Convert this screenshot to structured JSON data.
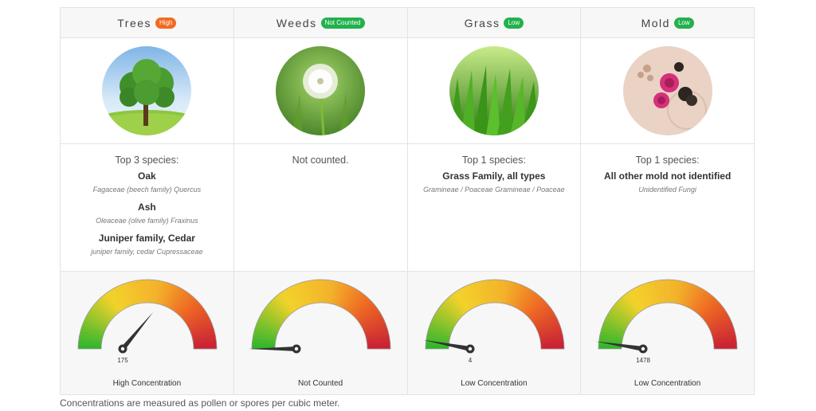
{
  "columns": [
    {
      "name": "Trees",
      "badge": "High",
      "badge_color": "#f26a21",
      "image": "tree-photo",
      "top_label": "Top 3 species:",
      "species": [
        {
          "name": "Oak",
          "scientific": "Fagaceae (beech family) Quercus"
        },
        {
          "name": "Ash",
          "scientific": "Oleaceae (olive family) Fraxinus"
        },
        {
          "name": "Juniper family, Cedar",
          "scientific": "juniper family, cedar Cupressaceae"
        }
      ],
      "gauge_value": "175",
      "gauge_level": 0.72,
      "concentration_label": "High Concentration"
    },
    {
      "name": "Weeds",
      "badge": "Not Counted",
      "badge_color": "#22b14c",
      "image": "dandelion-photo",
      "top_label": "Not counted.",
      "species": [],
      "gauge_value": "",
      "gauge_level": 0.0,
      "concentration_label": "Not Counted"
    },
    {
      "name": "Grass",
      "badge": "Low",
      "badge_color": "#22b14c",
      "image": "grass-photo",
      "top_label": "Top 1 species:",
      "species": [
        {
          "name": "Grass Family, all types",
          "scientific": "Gramineae / Poaceae Gramineae / Poaceae"
        }
      ],
      "gauge_value": "4",
      "gauge_level": 0.06,
      "concentration_label": "Low Concentration"
    },
    {
      "name": "Mold",
      "badge": "Low",
      "badge_color": "#22b14c",
      "image": "mold-spores-photo",
      "top_label": "Top 1 species:",
      "species": [
        {
          "name": "All other mold not identified",
          "scientific": "Unidentified Fungi"
        }
      ],
      "gauge_value": "1478",
      "gauge_level": 0.05,
      "concentration_label": "Low Concentration"
    }
  ],
  "footer_note": "Concentrations are measured as pollen or spores per cubic meter."
}
